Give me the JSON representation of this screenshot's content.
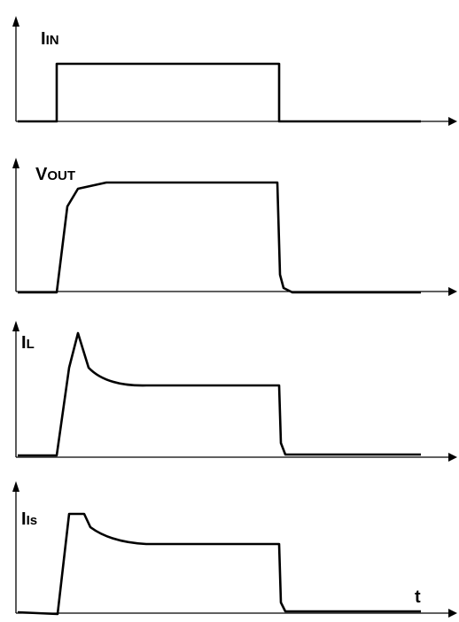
{
  "panels": [
    {
      "label": "I",
      "sub": "IN"
    },
    {
      "label": "V",
      "sub": "OUT"
    },
    {
      "label": "I",
      "sub": "L"
    },
    {
      "label": "I",
      "sub": "Is"
    }
  ],
  "time_label": "t"
}
